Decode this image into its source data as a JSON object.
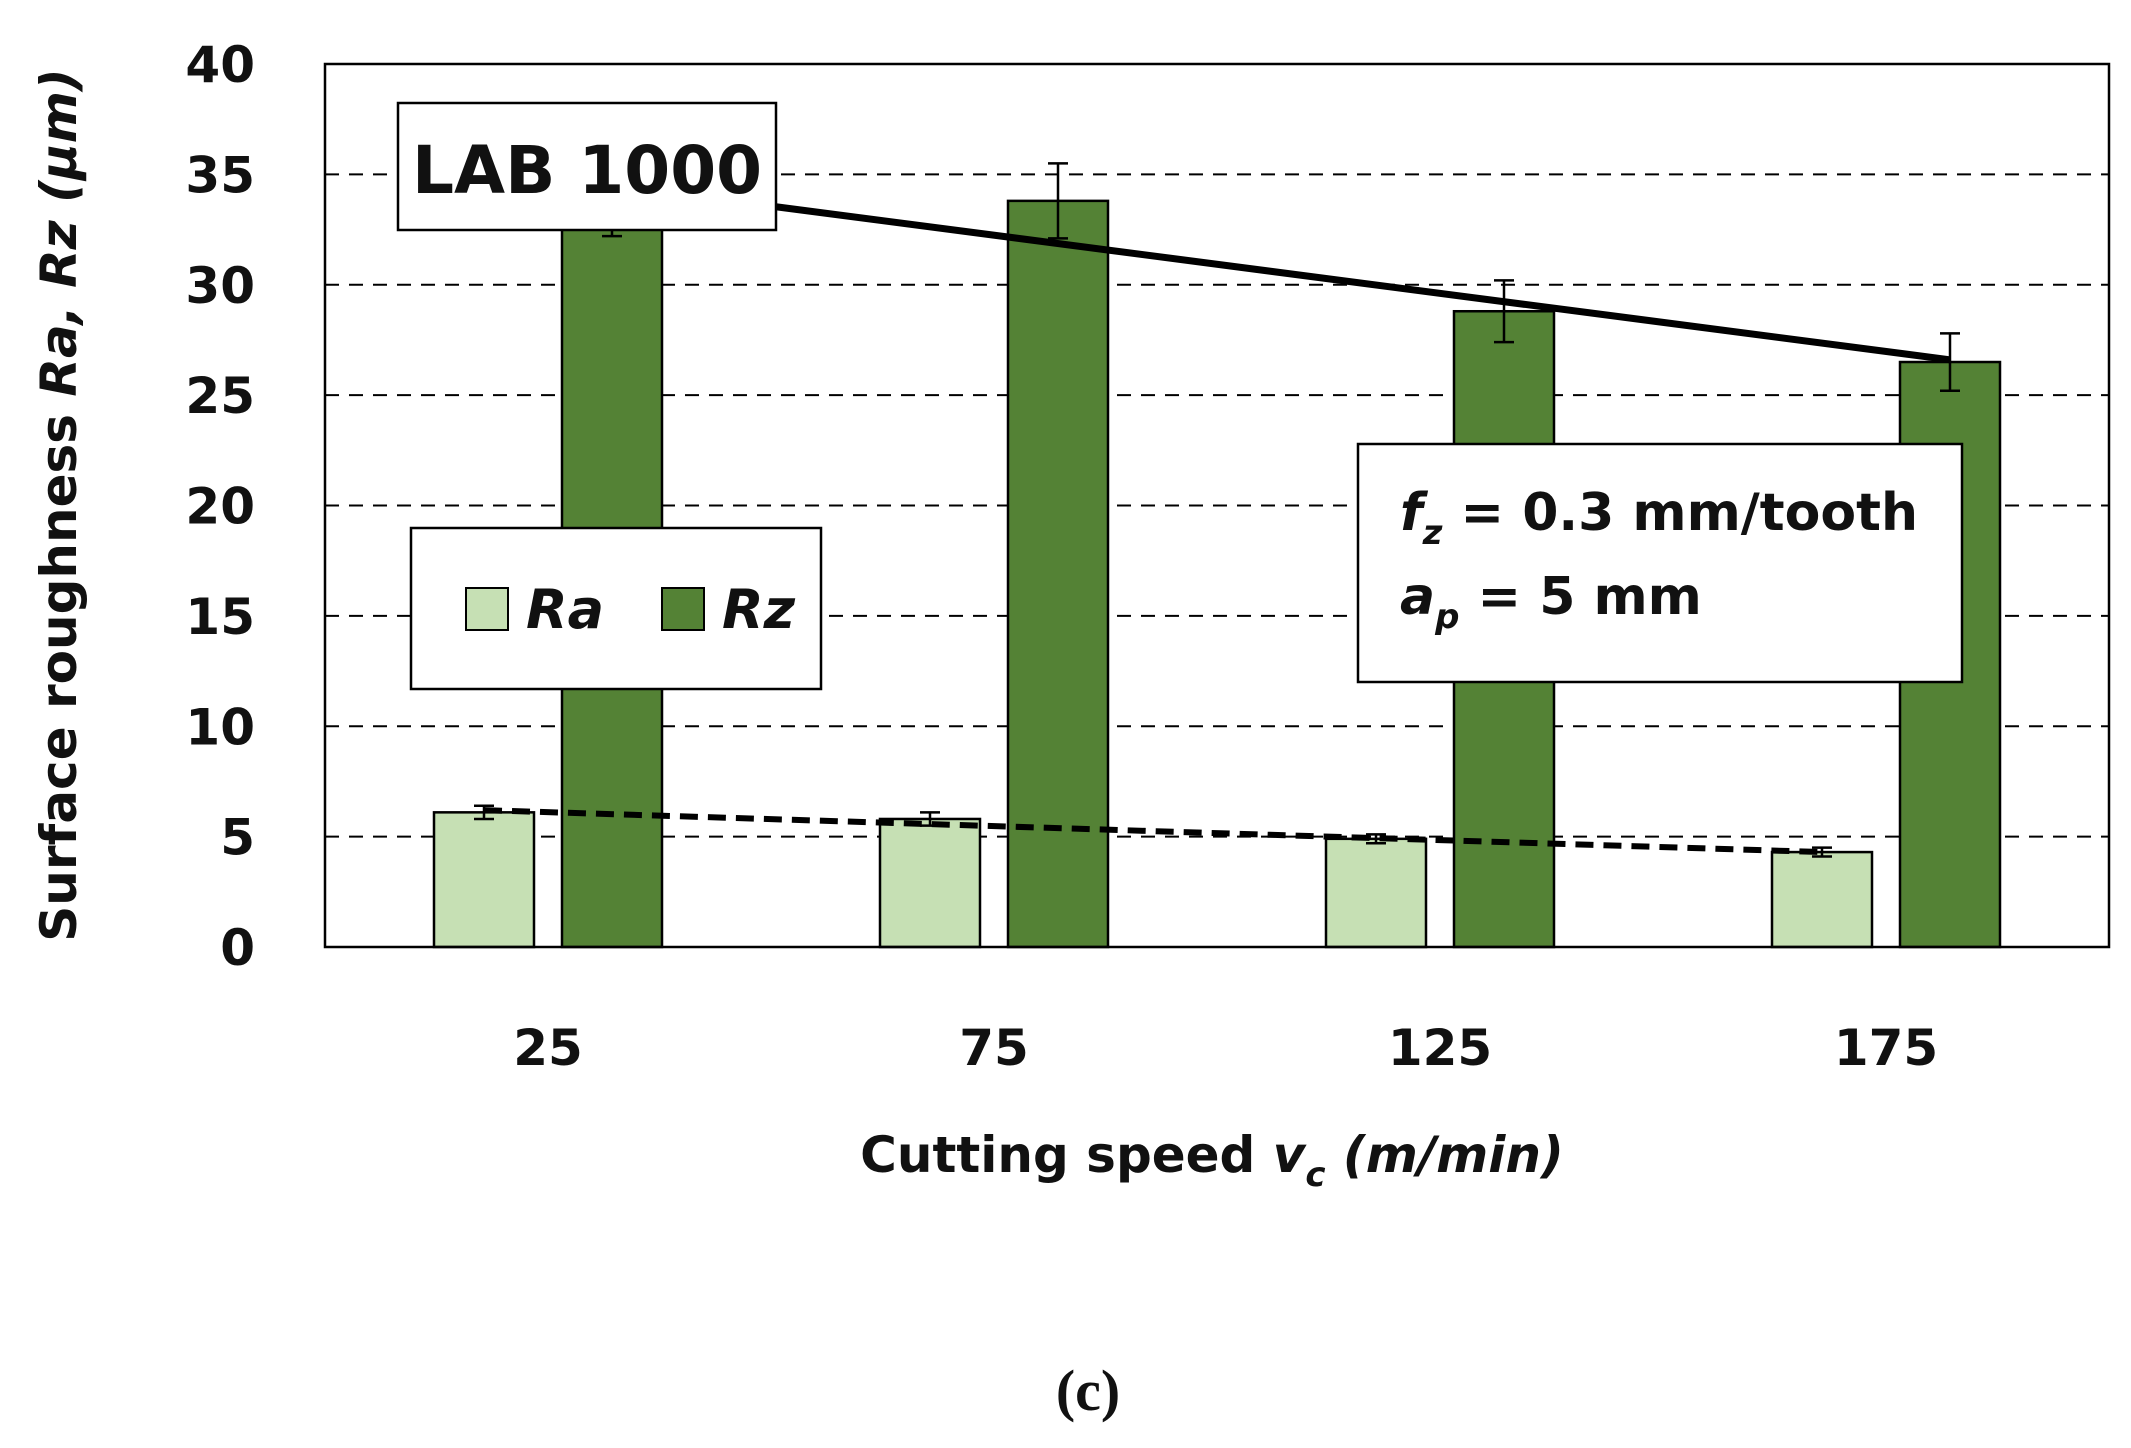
{
  "chart_data": {
    "type": "bar",
    "title": "LAB 1000",
    "xlabel": {
      "main": "Cutting speed ",
      "symbol": "v",
      "sub": "c",
      "unit": " (m/min)"
    },
    "ylabel": {
      "main": "Surface roughness ",
      "vars": "Ra, Rz",
      "unit": " (µm)"
    },
    "ylim": [
      0,
      40
    ],
    "yticks": [
      0,
      5,
      10,
      15,
      20,
      25,
      30,
      35,
      40
    ],
    "categories": [
      "25",
      "75",
      "125",
      "175"
    ],
    "series": [
      {
        "name": "Ra",
        "color": "#c6e0b4",
        "values": [
          6.1,
          5.8,
          4.9,
          4.3
        ],
        "errors": [
          0.3,
          0.3,
          0.2,
          0.2
        ]
      },
      {
        "name": "Rz",
        "color": "#548235",
        "values": [
          33.2,
          33.8,
          28.8,
          26.5
        ],
        "errors": [
          1.0,
          1.7,
          1.4,
          1.3
        ]
      }
    ],
    "trendlines": [
      {
        "series": "Ra",
        "style": "dashed",
        "start": 6.2,
        "end": 4.3
      },
      {
        "series": "Rz",
        "style": "solid",
        "start": 34.5,
        "end": 26.6
      }
    ],
    "grid": "horizontal-dashed",
    "legend": {
      "position": "center-left",
      "entries": [
        "Ra",
        "Rz"
      ]
    },
    "annotations": {
      "label_box": "LAB 1000",
      "params": [
        {
          "sym": "f",
          "sub": "z",
          "rest": " = 0.3 mm/tooth"
        },
        {
          "sym": "a",
          "sub": "p",
          "rest": " = 5 mm"
        }
      ]
    },
    "panel_label": "(c)"
  }
}
